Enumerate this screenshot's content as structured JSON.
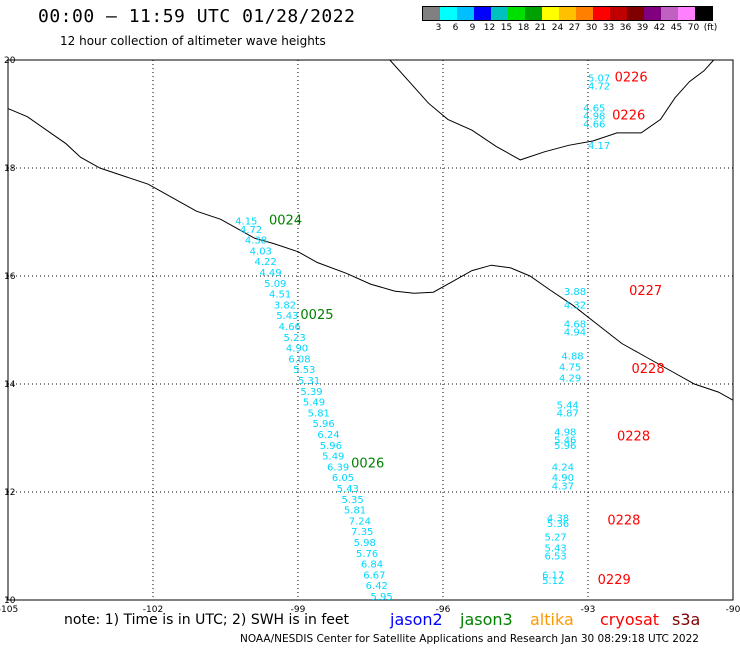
{
  "title": "00:00 – 11:59 UTC 01/28/2022",
  "subtitle": "12 hour collection of altimeter wave heights",
  "scale": {
    "colors": [
      "#808080",
      "#00ffff",
      "#00bfff",
      "#0000ff",
      "#00c0c0",
      "#00e000",
      "#00a000",
      "#ffff00",
      "#ffc000",
      "#ff8000",
      "#ff0000",
      "#c00000",
      "#800000",
      "#800080",
      "#c060c0",
      "#ff80ff",
      "#000000"
    ],
    "labels": [
      "3",
      "6",
      "9",
      "12",
      "15",
      "18",
      "21",
      "24",
      "27",
      "30",
      "33",
      "36",
      "39",
      "42",
      "45",
      "70",
      "(ft)"
    ]
  },
  "map": {
    "lon_range": [
      -105,
      -90
    ],
    "lat_range": [
      10,
      20
    ],
    "lon_ticks": [
      "-105",
      "-102",
      "-99",
      "-96",
      "-93",
      "-90"
    ],
    "lat_ticks": [
      "20",
      "18",
      "16",
      "14",
      "12",
      "10"
    ],
    "grid_lons": [
      -102,
      -99,
      -96,
      -93
    ],
    "grid_lats": [
      18,
      16,
      14,
      12
    ]
  },
  "tracks": [
    {
      "label": "0024",
      "satellite": "jason3",
      "color": "#008000",
      "label_lon": -99.6,
      "label_lat": 16.95,
      "points": [
        {
          "lon": -100.3,
          "lat": 16.95,
          "v": "4.15"
        },
        {
          "lon": -100.2,
          "lat": 16.8,
          "v": "4.72"
        },
        {
          "lon": -100.1,
          "lat": 16.6,
          "v": "4.38"
        },
        {
          "lon": -100.0,
          "lat": 16.4,
          "v": "4.03"
        },
        {
          "lon": -99.9,
          "lat": 16.2,
          "v": "4.22"
        },
        {
          "lon": -99.8,
          "lat": 16.0,
          "v": "4.49"
        },
        {
          "lon": -99.7,
          "lat": 15.8,
          "v": "5.09"
        },
        {
          "lon": -99.6,
          "lat": 15.6,
          "v": "4.51"
        },
        {
          "lon": -99.5,
          "lat": 15.4,
          "v": "3.82"
        },
        {
          "lon": -99.45,
          "lat": 15.2,
          "v": "5.43"
        },
        {
          "lon": -99.4,
          "lat": 15.0,
          "v": "4.66"
        }
      ]
    },
    {
      "label": "0025",
      "satellite": "jason3",
      "color": "#008000",
      "label_lon": -98.95,
      "label_lat": 15.2,
      "points": [
        {
          "lon": -99.3,
          "lat": 14.8,
          "v": "5.23"
        },
        {
          "lon": -99.25,
          "lat": 14.6,
          "v": "4.90"
        },
        {
          "lon": -99.2,
          "lat": 14.4,
          "v": "6.08"
        },
        {
          "lon": -99.1,
          "lat": 14.2,
          "v": "5.53"
        },
        {
          "lon": -99.0,
          "lat": 14.0,
          "v": "5.31"
        },
        {
          "lon": -98.95,
          "lat": 13.8,
          "v": "5.39"
        },
        {
          "lon": -98.9,
          "lat": 13.6,
          "v": "5.49"
        },
        {
          "lon": -98.8,
          "lat": 13.4,
          "v": "5.81"
        },
        {
          "lon": -98.7,
          "lat": 13.2,
          "v": "5.96"
        },
        {
          "lon": -98.6,
          "lat": 13.0,
          "v": "6.24"
        },
        {
          "lon": -98.55,
          "lat": 12.8,
          "v": "5.96"
        },
        {
          "lon": -98.5,
          "lat": 12.6,
          "v": "5.49"
        }
      ]
    },
    {
      "label": "0026",
      "satellite": "jason3",
      "color": "#008000",
      "label_lon": -97.9,
      "label_lat": 12.45,
      "points": [
        {
          "lon": -98.4,
          "lat": 12.4,
          "v": "6.39"
        },
        {
          "lon": -98.3,
          "lat": 12.2,
          "v": "6.05"
        },
        {
          "lon": -98.2,
          "lat": 12.0,
          "v": "5.43"
        },
        {
          "lon": -98.1,
          "lat": 11.8,
          "v": "5.35"
        },
        {
          "lon": -98.05,
          "lat": 11.6,
          "v": "5.81"
        },
        {
          "lon": -97.95,
          "lat": 11.4,
          "v": "7.24"
        },
        {
          "lon": -97.9,
          "lat": 11.2,
          "v": "7.35"
        },
        {
          "lon": -97.85,
          "lat": 11.0,
          "v": "5.98"
        },
        {
          "lon": -97.8,
          "lat": 10.8,
          "v": "5.76"
        },
        {
          "lon": -97.7,
          "lat": 10.6,
          "v": "6.84"
        },
        {
          "lon": -97.65,
          "lat": 10.4,
          "v": "6.67"
        },
        {
          "lon": -97.6,
          "lat": 10.2,
          "v": "6.42"
        },
        {
          "lon": -97.5,
          "lat": 10.0,
          "v": "5.95"
        }
      ]
    },
    {
      "label": "0226",
      "satellite": "cryosat",
      "color": "#ff0000",
      "label_lon": -92.45,
      "label_lat": 19.6,
      "points": [
        {
          "lon": -93.0,
          "lat": 19.6,
          "v": "5.07"
        },
        {
          "lon": -93.0,
          "lat": 19.45,
          "v": "4.72"
        }
      ]
    },
    {
      "label": "0226",
      "satellite": "cryosat",
      "color": "#ff0000",
      "label_lon": -92.5,
      "label_lat": 18.9,
      "points": [
        {
          "lon": -93.1,
          "lat": 19.05,
          "v": "4.65"
        },
        {
          "lon": -93.1,
          "lat": 18.9,
          "v": "4.98"
        },
        {
          "lon": -93.1,
          "lat": 18.75,
          "v": "4.66"
        },
        {
          "lon": -93.0,
          "lat": 18.35,
          "v": "4.17"
        }
      ]
    },
    {
      "label": "0227",
      "satellite": "cryosat",
      "color": "#ff0000",
      "label_lon": -92.15,
      "label_lat": 15.65,
      "points": [
        {
          "lon": -93.5,
          "lat": 15.65,
          "v": "3.88"
        },
        {
          "lon": -93.5,
          "lat": 15.4,
          "v": "4.32"
        },
        {
          "lon": -93.5,
          "lat": 15.05,
          "v": "4.68"
        },
        {
          "lon": -93.5,
          "lat": 14.9,
          "v": "4.94"
        },
        {
          "lon": -93.55,
          "lat": 14.45,
          "v": "4.88"
        }
      ]
    },
    {
      "label": "0228",
      "satellite": "cryosat",
      "color": "#ff0000",
      "label_lon": -92.1,
      "label_lat": 14.2,
      "points": [
        {
          "lon": -93.6,
          "lat": 14.25,
          "v": "4.75"
        },
        {
          "lon": -93.6,
          "lat": 14.05,
          "v": "4.29"
        }
      ]
    },
    {
      "label": "0228",
      "satellite": "cryosat",
      "color": "#ff0000",
      "label_lon": -92.4,
      "label_lat": 12.95,
      "points": [
        {
          "lon": -93.65,
          "lat": 13.55,
          "v": "5.44"
        },
        {
          "lon": -93.65,
          "lat": 13.4,
          "v": "4.87"
        },
        {
          "lon": -93.7,
          "lat": 13.05,
          "v": "4.98"
        },
        {
          "lon": -93.7,
          "lat": 12.9,
          "v": "5.46"
        },
        {
          "lon": -93.7,
          "lat": 12.8,
          "v": "5.96"
        }
      ]
    },
    {
      "label": "0228",
      "satellite": "cryosat",
      "color": "#ff0000",
      "label_lon": -92.6,
      "label_lat": 11.4,
      "points": [
        {
          "lon": -93.75,
          "lat": 12.4,
          "v": "4.24"
        },
        {
          "lon": -93.75,
          "lat": 12.2,
          "v": "4.90"
        },
        {
          "lon": -93.75,
          "lat": 12.05,
          "v": "4.37"
        },
        {
          "lon": -93.85,
          "lat": 11.45,
          "v": "4.38"
        },
        {
          "lon": -93.85,
          "lat": 11.35,
          "v": "5.36"
        },
        {
          "lon": -93.9,
          "lat": 11.1,
          "v": "5.27"
        },
        {
          "lon": -93.9,
          "lat": 10.9,
          "v": "5.43"
        },
        {
          "lon": -93.9,
          "lat": 10.75,
          "v": "6.53"
        }
      ]
    },
    {
      "label": "0229",
      "satellite": "cryosat",
      "color": "#ff0000",
      "label_lon": -92.8,
      "label_lat": 10.3,
      "points": [
        {
          "lon": -93.95,
          "lat": 10.4,
          "v": "6.17"
        },
        {
          "lon": -93.95,
          "lat": 10.3,
          "v": "5.12"
        }
      ]
    }
  ],
  "value_color": "#00d8ff",
  "note": "note: 1) Time is in UTC; 2) SWH is in feet",
  "legend": [
    {
      "name": "jason2",
      "color": "#0000ff"
    },
    {
      "name": "jason3",
      "color": "#008000"
    },
    {
      "name": "altika",
      "color": "#ff9900"
    },
    {
      "name": "cryosat",
      "color": "#ff0000"
    },
    {
      "name": "s3a",
      "color": "#800000"
    }
  ],
  "footer": "NOAA/NESDIS Center for Satellite Applications and Research   Jan 30 08:29:18 UTC 2022"
}
